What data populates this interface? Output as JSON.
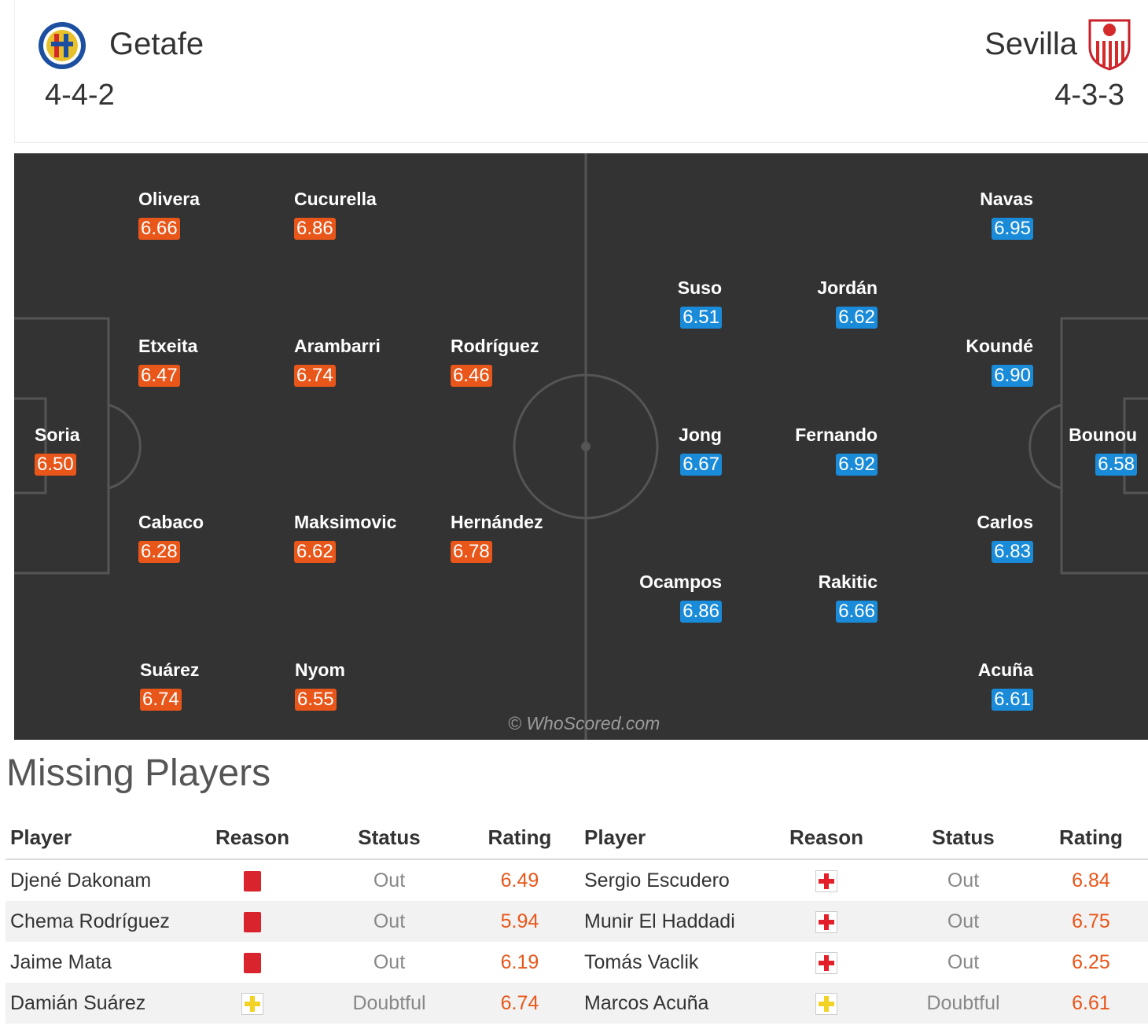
{
  "header": {
    "home": {
      "name": "Getafe",
      "formation": "4-4-2",
      "crest_icon": "getafe-crest-icon"
    },
    "away": {
      "name": "Sevilla",
      "formation": "4-3-3",
      "crest_icon": "sevilla-crest-icon"
    }
  },
  "colors": {
    "home_rating": "#e8561a",
    "away_rating": "#1a8bd8",
    "pitch": "#333333"
  },
  "pitch": {
    "watermark": "© WhoScored.com",
    "home_players": [
      {
        "name": "Olivera",
        "rating": "6.66"
      },
      {
        "name": "Cucurella",
        "rating": "6.86"
      },
      {
        "name": "Etxeita",
        "rating": "6.47"
      },
      {
        "name": "Arambarri",
        "rating": "6.74"
      },
      {
        "name": "Rodríguez",
        "rating": "6.46"
      },
      {
        "name": "Soria",
        "rating": "6.50"
      },
      {
        "name": "Cabaco",
        "rating": "6.28"
      },
      {
        "name": "Maksimovic",
        "rating": "6.62"
      },
      {
        "name": "Hernández",
        "rating": "6.78"
      },
      {
        "name": "Suárez",
        "rating": "6.74"
      },
      {
        "name": "Nyom",
        "rating": "6.55"
      }
    ],
    "away_players": [
      {
        "name": "Navas",
        "rating": "6.95"
      },
      {
        "name": "Suso",
        "rating": "6.51"
      },
      {
        "name": "Jordán",
        "rating": "6.62"
      },
      {
        "name": "Koundé",
        "rating": "6.90"
      },
      {
        "name": "Jong",
        "rating": "6.67"
      },
      {
        "name": "Fernando",
        "rating": "6.92"
      },
      {
        "name": "Bounou",
        "rating": "6.58"
      },
      {
        "name": "Carlos",
        "rating": "6.83"
      },
      {
        "name": "Ocampos",
        "rating": "6.86"
      },
      {
        "name": "Rakitic",
        "rating": "6.66"
      },
      {
        "name": "Acuña",
        "rating": "6.61"
      }
    ]
  },
  "missing": {
    "title": "Missing Players",
    "columns": [
      "Player",
      "Reason",
      "Status",
      "Rating",
      "Player",
      "Reason",
      "Status",
      "Rating"
    ],
    "rows": [
      {
        "home_player": "Djené Dakonam",
        "home_reason": "red-card-icon",
        "home_status": "Out",
        "home_rating": "6.49",
        "away_player": "Sergio Escudero",
        "away_reason": "injury-icon",
        "away_status": "Out",
        "away_rating": "6.84"
      },
      {
        "home_player": "Chema Rodríguez",
        "home_reason": "red-card-icon",
        "home_status": "Out",
        "home_rating": "5.94",
        "away_player": "Munir El Haddadi",
        "away_reason": "injury-icon",
        "away_status": "Out",
        "away_rating": "6.75"
      },
      {
        "home_player": "Jaime Mata",
        "home_reason": "red-card-icon",
        "home_status": "Out",
        "home_rating": "6.19",
        "away_player": "Tomás Vaclik",
        "away_reason": "injury-icon",
        "away_status": "Out",
        "away_rating": "6.25"
      },
      {
        "home_player": "Damián Suárez",
        "home_reason": "doubtful-injury-icon",
        "home_status": "Doubtful",
        "home_rating": "6.74",
        "away_player": "Marcos Acuña",
        "away_reason": "doubtful-injury-icon",
        "away_status": "Doubtful",
        "away_rating": "6.61"
      }
    ]
  }
}
